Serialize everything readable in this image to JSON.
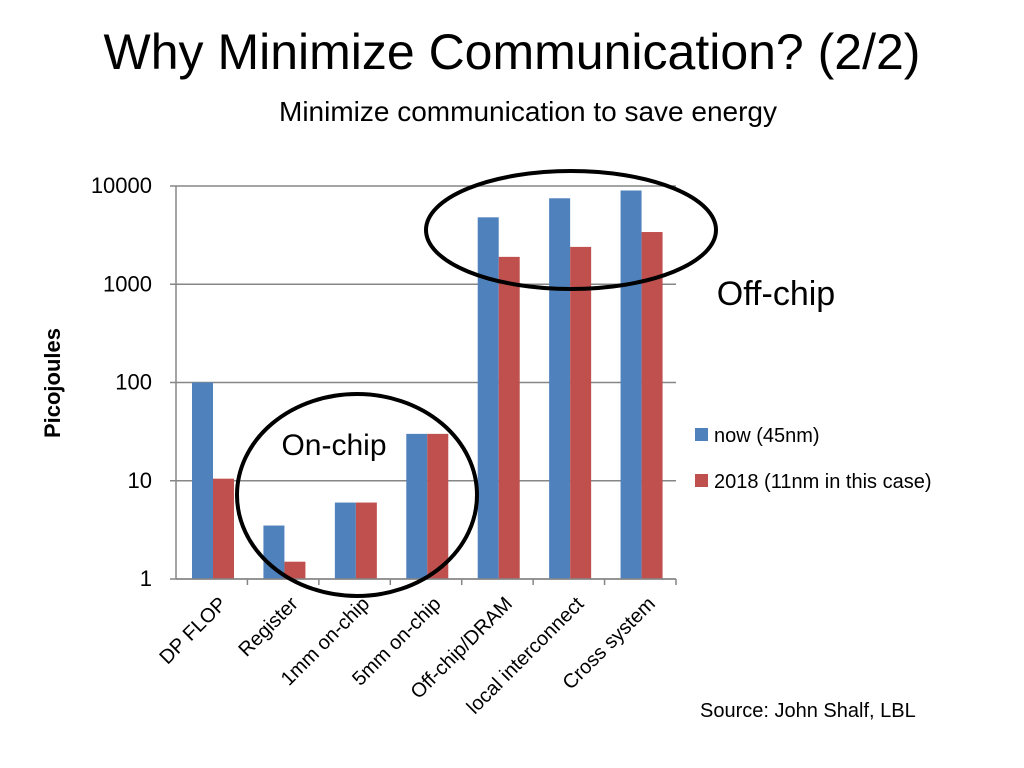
{
  "slide": {
    "title": "Why Minimize Communication? (2/2)",
    "subtitle": "Minimize communication to save energy",
    "source": "Source: John Shalf, LBL"
  },
  "annotations": {
    "on_chip": "On-chip",
    "off_chip": "Off-chip"
  },
  "chart_data": {
    "type": "bar",
    "scale": "log",
    "ylabel": "Picojoules",
    "ylim": [
      1,
      10000
    ],
    "yticks": [
      {
        "value": 1,
        "label": "1"
      },
      {
        "value": 10,
        "label": "10"
      },
      {
        "value": 100,
        "label": "100"
      },
      {
        "value": 1000,
        "label": "1000"
      },
      {
        "value": 10000,
        "label": "10000"
      }
    ],
    "categories": [
      "DP FLOP",
      "Register",
      "1mm on-chip",
      "5mm on-chip",
      "Off-chip/DRAM",
      "local interconnect",
      "Cross system"
    ],
    "series": [
      {
        "name": "now (45nm)",
        "color": "#4F81BD",
        "values": [
          100,
          3.5,
          6,
          30,
          4800,
          7500,
          9000
        ]
      },
      {
        "name": "2018 (11nm in this case)",
        "color": "#C0504D",
        "values": [
          10.5,
          1.5,
          6,
          30,
          1900,
          2400,
          3400
        ]
      }
    ],
    "legend_position": "right"
  }
}
